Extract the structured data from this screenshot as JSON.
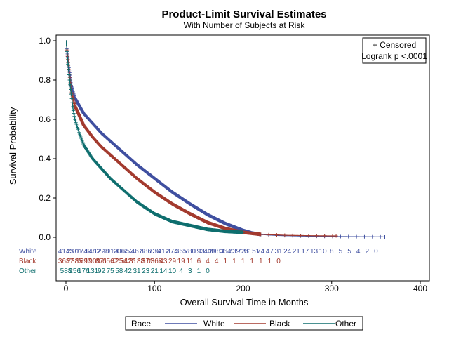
{
  "chart_data": {
    "type": "line",
    "title": "Product-Limit Survival Estimates",
    "subtitle": "With Number of Subjects at Risk",
    "xlabel": "Overall Survival Time in Months",
    "ylabel": "Survival Probability",
    "xlim": [
      0,
      400
    ],
    "ylim": [
      0,
      1
    ],
    "x_ticks": [
      0,
      100,
      200,
      300,
      400
    ],
    "y_ticks": [
      0.0,
      0.2,
      0.4,
      0.6,
      0.8,
      1.0
    ],
    "y_tick_labels": [
      "0.0",
      "0.2",
      "0.4",
      "0.6",
      "0.8",
      "1.0"
    ],
    "grid": false,
    "inset": [
      "+ Censored",
      "Logrank p <.0001"
    ],
    "legend": {
      "placement": "bottom",
      "title": "Race"
    },
    "series": [
      {
        "name": "White",
        "color": "#3F4FA0",
        "x": [
          0,
          3,
          6,
          10,
          15,
          20,
          30,
          40,
          50,
          60,
          80,
          100,
          120,
          140,
          160,
          180,
          200,
          210,
          220,
          240,
          260,
          280,
          300,
          330,
          360
        ],
        "y": [
          1.0,
          0.88,
          0.77,
          0.71,
          0.67,
          0.63,
          0.58,
          0.53,
          0.49,
          0.45,
          0.37,
          0.3,
          0.23,
          0.17,
          0.115,
          0.07,
          0.035,
          0.022,
          0.014,
          0.009,
          0.007,
          0.005,
          0.004,
          0.003,
          0.002
        ]
      },
      {
        "name": "Black",
        "color": "#A33A2E",
        "x": [
          0,
          3,
          6,
          10,
          15,
          20,
          30,
          40,
          50,
          60,
          80,
          100,
          120,
          140,
          160,
          180,
          200,
          220,
          250,
          280,
          305
        ],
        "y": [
          1.0,
          0.86,
          0.74,
          0.67,
          0.62,
          0.57,
          0.51,
          0.46,
          0.42,
          0.38,
          0.3,
          0.23,
          0.17,
          0.12,
          0.075,
          0.045,
          0.025,
          0.015,
          0.01,
          0.008,
          0.007
        ]
      },
      {
        "name": "Other",
        "color": "#0E6E6E",
        "x": [
          0,
          2,
          4,
          6,
          8,
          10,
          15,
          20,
          30,
          40,
          50,
          60,
          80,
          100,
          120,
          140,
          160,
          180,
          200
        ],
        "y": [
          1.0,
          0.89,
          0.8,
          0.72,
          0.65,
          0.6,
          0.53,
          0.47,
          0.4,
          0.35,
          0.3,
          0.26,
          0.18,
          0.12,
          0.08,
          0.06,
          0.04,
          0.03,
          0.025
        ]
      }
    ],
    "at_risk": {
      "x": [
        0,
        10,
        20,
        30,
        40,
        50,
        60,
        70,
        80,
        90,
        100,
        110,
        120,
        130,
        140,
        150,
        160,
        170,
        180,
        190,
        200,
        210,
        220,
        230,
        240,
        250,
        260,
        270,
        280,
        290,
        300,
        310,
        320,
        330,
        340,
        350,
        360
      ],
      "rows": [
        {
          "label": "White",
          "color": "#3F4FA0",
          "values": [
            "4143",
            "2901",
            "1749",
            "1482",
            "1228",
            "1013",
            "906",
            "652",
            "467",
            "386",
            "736",
            "412",
            "374",
            "365",
            "280",
            "193",
            "3408",
            "2983",
            "364",
            "739",
            "725",
            "0151",
            "74",
            "47",
            "31",
            "24",
            "21",
            "17",
            "13",
            "10",
            "8",
            "5",
            "5",
            "4",
            "2",
            "0",
            ""
          ]
        },
        {
          "label": "Black",
          "color": "#A33A2E",
          "values": [
            "3687",
            "2885",
            "1690",
            "1909",
            "871",
            "6567",
            "4254",
            "3425",
            "8188",
            "1371",
            "0368",
            "43",
            "29",
            "19",
            "11",
            "6",
            "4",
            "4",
            "1",
            "1",
            "1",
            "1",
            "1",
            "1",
            "0",
            "",
            "",
            "",
            "",
            "",
            "",
            "",
            "",
            "",
            "",
            "",
            ""
          ]
        },
        {
          "label": "Other",
          "color": "#0E6E6E",
          "values": [
            "588",
            "256",
            "176",
            "131",
            "92",
            "75",
            "58",
            "42",
            "31",
            "23",
            "21",
            "14",
            "10",
            "4",
            "3",
            "1",
            "0",
            "",
            "",
            "",
            "",
            "",
            "",
            "",
            "",
            "",
            "",
            "",
            "",
            "",
            "",
            "",
            "",
            "",
            "",
            "",
            ""
          ]
        }
      ]
    }
  }
}
